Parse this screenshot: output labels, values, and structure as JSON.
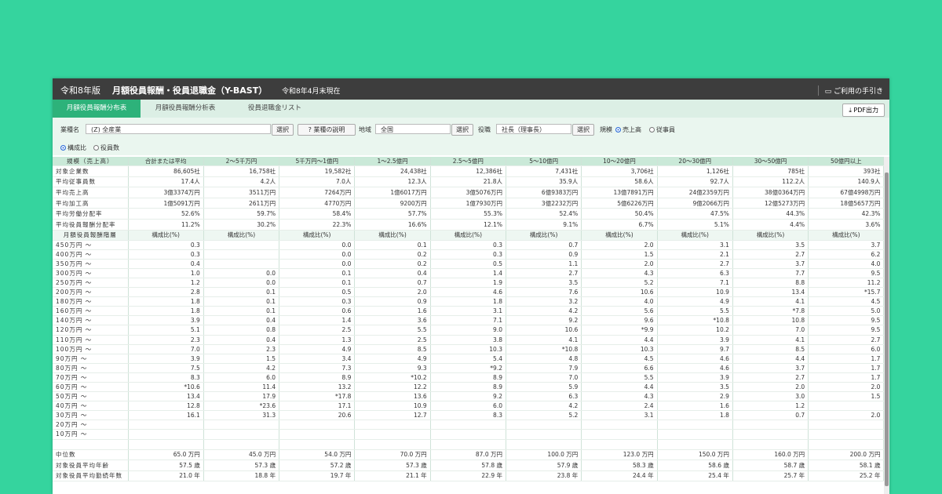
{
  "header": {
    "edition": "令和8年版",
    "title": "月額役員報酬・役員退職金（Y-BAST）",
    "date": "令和8年4月末現在",
    "help": "ご利用の手引き"
  },
  "tabs": [
    "月額役員報酬分布表",
    "月額役員報酬分析表",
    "役員退職金リスト"
  ],
  "pdf_button": "PDF出力",
  "filters": {
    "industry_label": "業種名",
    "industry_value": "(Z) 全産業",
    "select": "選択",
    "industry_help": "業種の説明",
    "region_label": "地域",
    "region_value": "全国",
    "position_label": "役職",
    "position_value": "社長（理事長）",
    "scale_label": "規模",
    "scale_options": [
      "売上高",
      "従事員"
    ],
    "display_options": [
      "構成比",
      "役員数"
    ]
  },
  "table": {
    "columns": [
      "規模（売上高）",
      "合計または平均",
      "2～5千万円",
      "5千万円～1億円",
      "1～2.5億円",
      "2.5～5億円",
      "5～10億円",
      "10～20億円",
      "20～30億円",
      "30～50億円",
      "50億円以上"
    ],
    "summary_rows": [
      {
        "label": "対象企業数",
        "cells": [
          "86,605社",
          "16,758社",
          "19,582社",
          "24,438社",
          "12,386社",
          "7,431社",
          "3,706社",
          "1,126社",
          "785社",
          "393社"
        ]
      },
      {
        "label": "平均従事員数",
        "cells": [
          "17.4人",
          "4.2人",
          "7.0人",
          "12.3人",
          "21.8人",
          "35.9人",
          "58.6人",
          "92.7人",
          "112.2人",
          "140.9人"
        ]
      },
      {
        "label": "平均売上高",
        "cells": [
          "3億3374万円",
          "3511万円",
          "7264万円",
          "1億6017万円",
          "3億5076万円",
          "6億9383万円",
          "13億7891万円",
          "24億2359万円",
          "38億0364万円",
          "67億4998万円"
        ]
      },
      {
        "label": "平均加工高",
        "cells": [
          "1億5091万円",
          "2611万円",
          "4770万円",
          "9200万円",
          "1億7930万円",
          "3億2232万円",
          "5億6226万円",
          "9億2066万円",
          "12億5273万円",
          "18億5657万円"
        ]
      },
      {
        "label": "平均労働分配率",
        "cells": [
          "52.6%",
          "59.7%",
          "58.4%",
          "57.7%",
          "55.3%",
          "52.4%",
          "50.4%",
          "47.5%",
          "44.3%",
          "42.3%"
        ]
      },
      {
        "label": "平均役員報酬分配率",
        "cells": [
          "11.2%",
          "30.2%",
          "22.3%",
          "16.6%",
          "12.1%",
          "9.1%",
          "6.7%",
          "5.1%",
          "4.4%",
          "3.6%"
        ]
      }
    ],
    "distribution_header": {
      "label": "月額役員報酬階層",
      "cell": "構成比(%)"
    },
    "distribution_rows": [
      {
        "label": "450万円 ～",
        "cells": [
          "0.3",
          null,
          "0.0",
          "0.1",
          "0.3",
          "0.7",
          "2.0",
          "3.1",
          "3.5",
          "3.7"
        ]
      },
      {
        "label": "400万円 ～",
        "cells": [
          "0.3",
          null,
          "0.0",
          "0.2",
          "0.3",
          "0.9",
          "1.5",
          "2.1",
          "2.7",
          "6.2"
        ]
      },
      {
        "label": "350万円 ～",
        "cells": [
          "0.4",
          null,
          "0.0",
          "0.2",
          "0.5",
          "1.1",
          "2.0",
          "2.7",
          "3.7",
          "4.0"
        ]
      },
      {
        "label": "300万円 ～",
        "cells": [
          "1.0",
          "0.0",
          "0.1",
          "0.4",
          "1.4",
          "2.7",
          "4.3",
          "6.3",
          "7.7",
          "9.5"
        ]
      },
      {
        "label": "250万円 ～",
        "cells": [
          "1.2",
          "0.0",
          "0.1",
          "0.7",
          "1.9",
          "3.5",
          "5.2",
          "7.1",
          "8.8",
          "11.2"
        ]
      },
      {
        "label": "200万円 ～",
        "cells": [
          "2.8",
          "0.1",
          "0.5",
          "2.0",
          "4.6",
          "7.6",
          "10.6",
          "10.9",
          "13.4",
          "*15.7"
        ]
      },
      {
        "label": "180万円 ～",
        "cells": [
          "1.8",
          "0.1",
          "0.3",
          "0.9",
          "1.8",
          "3.2",
          "4.0",
          "4.9",
          "4.1",
          "4.5"
        ]
      },
      {
        "label": "160万円 ～",
        "cells": [
          "1.8",
          "0.1",
          "0.6",
          "1.6",
          "3.1",
          "4.2",
          "5.6",
          "5.5",
          "*7.8",
          "5.0"
        ]
      },
      {
        "label": "140万円 ～",
        "cells": [
          "3.9",
          "0.4",
          "1.4",
          "3.6",
          "7.1",
          "9.2",
          "9.6",
          "*10.8",
          "10.8",
          "9.5"
        ]
      },
      {
        "label": "120万円 ～",
        "cells": [
          "5.1",
          "0.8",
          "2.5",
          "5.5",
          "9.0",
          "10.6",
          "*9.9",
          "10.2",
          "7.0",
          "9.5"
        ]
      },
      {
        "label": "110万円 ～",
        "cells": [
          "2.3",
          "0.4",
          "1.3",
          "2.5",
          "3.8",
          "4.1",
          "4.4",
          "3.9",
          "4.1",
          "2.7"
        ]
      },
      {
        "label": "100万円 ～",
        "cells": [
          "7.0",
          "2.3",
          "4.9",
          "8.5",
          "10.3",
          "*10.8",
          "10.3",
          "9.7",
          "8.5",
          "6.0"
        ]
      },
      {
        "label": "90万円 ～",
        "cells": [
          "3.9",
          "1.5",
          "3.4",
          "4.9",
          "5.4",
          "4.8",
          "4.5",
          "4.6",
          "4.4",
          "1.7"
        ]
      },
      {
        "label": "80万円 ～",
        "cells": [
          "7.5",
          "4.2",
          "7.3",
          "9.3",
          "*9.2",
          "7.9",
          "6.6",
          "4.6",
          "3.7",
          "1.7"
        ]
      },
      {
        "label": "70万円 ～",
        "cells": [
          "8.3",
          "6.0",
          "8.9",
          "*10.2",
          "8.9",
          "7.0",
          "5.5",
          "3.9",
          "2.7",
          "1.7"
        ]
      },
      {
        "label": "60万円 ～",
        "cells": [
          "*10.6",
          "11.4",
          "13.2",
          "12.2",
          "8.9",
          "5.9",
          "4.4",
          "3.5",
          "2.0",
          "2.0"
        ]
      },
      {
        "label": "50万円 ～",
        "cells": [
          "13.4",
          "17.9",
          "*17.8",
          "13.6",
          "9.2",
          "6.3",
          "4.3",
          "2.9",
          "3.0",
          "1.5"
        ]
      },
      {
        "label": "40万円 ～",
        "cells": [
          "12.8",
          "*23.6",
          "17.1",
          "10.9",
          "6.0",
          "4.2",
          "2.4",
          "1.6",
          "1.2",
          null
        ]
      },
      {
        "label": "30万円 ～",
        "cells": [
          "16.1",
          "31.3",
          "20.6",
          "12.7",
          "8.3",
          "5.2",
          "3.1",
          "1.8",
          "0.7",
          "2.0"
        ]
      },
      {
        "label": "20万円 ～",
        "cells": [
          null,
          null,
          null,
          null,
          null,
          null,
          null,
          null,
          null,
          null
        ]
      },
      {
        "label": "10万円 ～",
        "cells": [
          null,
          null,
          null,
          null,
          null,
          null,
          null,
          null,
          null,
          null
        ]
      }
    ],
    "footer_rows": [
      {
        "label": "中位数",
        "cells": [
          "65.0 万円",
          "45.0 万円",
          "54.0 万円",
          "70.0 万円",
          "87.0 万円",
          "100.0 万円",
          "123.0 万円",
          "150.0 万円",
          "160.0 万円",
          "200.0 万円"
        ]
      },
      {
        "label": "対象役員平均年齢",
        "cells": [
          "57.5 歳",
          "57.3 歳",
          "57.2 歳",
          "57.3 歳",
          "57.8 歳",
          "57.9 歳",
          "58.3 歳",
          "58.6 歳",
          "58.7 歳",
          "58.1 歳"
        ]
      },
      {
        "label": "対象役員平均勤続年数",
        "cells": [
          "21.0 年",
          "18.8 年",
          "19.7 年",
          "21.1 年",
          "22.9 年",
          "23.8 年",
          "24.4 年",
          "25.4 年",
          "25.7 年",
          "25.2 年"
        ]
      }
    ]
  }
}
